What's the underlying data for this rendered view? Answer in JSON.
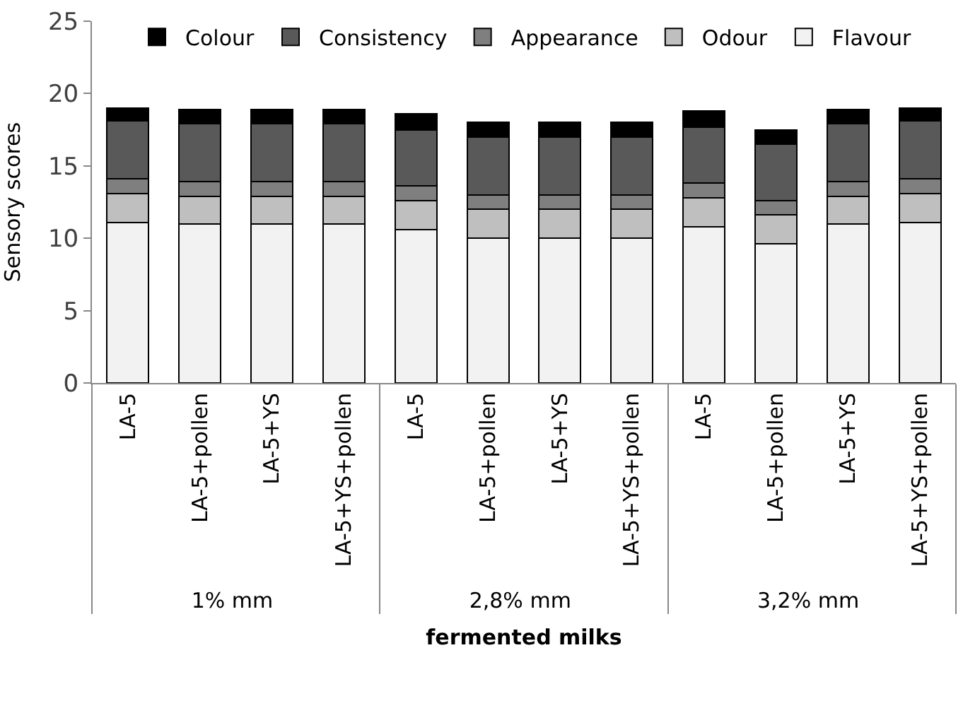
{
  "chart_data": {
    "type": "bar",
    "stacked": true,
    "xlabel": "fermented milks",
    "ylabel": "Sensory scores",
    "categories": [
      "LA-5",
      "LA-5+pollen",
      "LA-5+YS",
      "LA-5+YS+pollen",
      "LA-5",
      "LA-5+pollen",
      "LA-5+YS",
      "LA-5+YS+pollen",
      "LA-5",
      "LA-5+pollen",
      "LA-5+YS",
      "LA-5+YS+pollen"
    ],
    "annotations": [
      "1% mm",
      "2,8% mm",
      "3,2% mm"
    ],
    "series": [
      {
        "name": "Flavour",
        "color": "#f2f2f2",
        "values": [
          11.1,
          11.0,
          11.0,
          11.0,
          10.6,
          10.0,
          10.0,
          10.0,
          10.8,
          9.6,
          11.0,
          11.1
        ]
      },
      {
        "name": "Odour",
        "color": "#bfbfbf",
        "values": [
          2.0,
          1.9,
          1.9,
          1.9,
          2.0,
          2.0,
          2.0,
          2.0,
          2.0,
          2.0,
          1.9,
          2.0
        ]
      },
      {
        "name": "Appearance",
        "color": "#7f7f7f",
        "values": [
          1.0,
          1.0,
          1.0,
          1.0,
          1.0,
          1.0,
          1.0,
          1.0,
          1.0,
          1.0,
          1.0,
          1.0
        ]
      },
      {
        "name": "Consistency",
        "color": "#595959",
        "values": [
          4.0,
          4.0,
          4.0,
          4.0,
          3.9,
          4.0,
          4.0,
          4.0,
          3.9,
          3.9,
          4.0,
          4.0
        ]
      },
      {
        "name": "Colour",
        "color": "#000000",
        "values": [
          0.9,
          1.0,
          1.0,
          1.0,
          1.1,
          1.0,
          1.0,
          1.0,
          1.1,
          1.0,
          1.0,
          0.9
        ]
      }
    ],
    "ylim": [
      0,
      25
    ],
    "yticks": [
      0,
      5,
      10,
      15,
      20,
      25
    ],
    "legend": "top"
  }
}
